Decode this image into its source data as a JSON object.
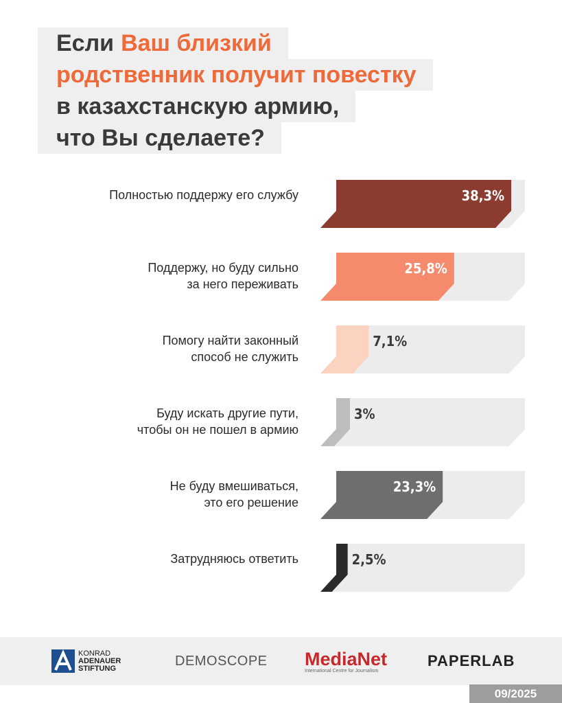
{
  "title_lines": [
    [
      {
        "text": "Если"
      },
      {
        "text": "Ваш близкий",
        "highlight": true
      }
    ],
    [
      {
        "text": "родственник получит повестку",
        "highlight": true
      }
    ],
    [
      {
        "text": "в казахстанскую армию,"
      }
    ],
    [
      {
        "text": "что Вы сделаете?"
      }
    ]
  ],
  "chart_data": {
    "type": "bar",
    "orientation": "horizontal",
    "categories": [
      "Полностью поддержу его службу",
      "Поддержу, но буду сильно\nза него переживать",
      "Помогу найти законный\nспособ не служить",
      "Буду искать другие пути,\nчтобы он не пошел в армию",
      "Не буду вмешиваться,\nэто его решение",
      "Затрудняюсь ответить"
    ],
    "values": [
      38.3,
      25.8,
      7.1,
      3,
      23.3,
      2.5
    ],
    "value_labels": [
      "38,3%",
      "25,8%",
      "7,1%",
      "3%",
      "23,3%",
      "2,5%"
    ],
    "colors": [
      "#8c3b31",
      "#f58a6c",
      "#fcd2c0",
      "#bdbdbd",
      "#6d6e70",
      "#2b2b2b"
    ]
  },
  "footer": {
    "kas": [
      "KONRAD",
      "ADENAUER",
      "STIFTUNG"
    ],
    "demoscope": "DEMOSCOPE",
    "medianet": "MediaNet",
    "medianet_sub": "International Centre for Journalism",
    "paperlab": "PAPERLAB",
    "date": "09/2025"
  }
}
